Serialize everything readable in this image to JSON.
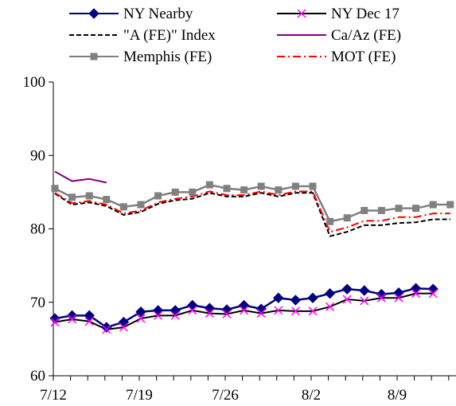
{
  "chart_data": {
    "type": "line",
    "title": "",
    "xlabel": "",
    "ylabel": "",
    "ylim": [
      60,
      100
    ],
    "yticks": [
      "60",
      "70",
      "80",
      "90",
      "100"
    ],
    "xtick_labels": [
      "7/12",
      "7/19",
      "7/26",
      "8/2",
      "8/9"
    ],
    "xtick_positions": [
      0,
      5,
      10,
      15,
      20
    ],
    "x_count": 24,
    "legend": "top, two columns",
    "grid": false,
    "series": [
      {
        "name": "NY Nearby",
        "color": "#000080",
        "marker": "diamond",
        "dash": "solid",
        "x": [
          0,
          1,
          2,
          3,
          4,
          5,
          6,
          7,
          8,
          9,
          10,
          11,
          12,
          13,
          14,
          15,
          16,
          17,
          18,
          19,
          20,
          21,
          22
        ],
        "values": [
          67.8,
          68.2,
          68.2,
          66.6,
          67.3,
          68.7,
          68.9,
          68.9,
          69.6,
          69.2,
          69.0,
          69.6,
          69.1,
          70.6,
          70.3,
          70.6,
          71.2,
          71.8,
          71.6,
          71.1,
          71.3,
          71.9,
          71.8
        ]
      },
      {
        "name": "NY Dec 17",
        "color": "#000000",
        "marker": "none",
        "dash": "solid",
        "x": [
          0,
          1,
          2,
          3,
          4,
          5,
          6,
          7,
          8,
          9,
          10,
          11,
          12,
          13,
          14,
          15,
          16,
          17,
          18,
          19,
          20,
          21,
          22
        ],
        "values": [
          67.3,
          67.7,
          67.4,
          66.3,
          66.6,
          67.8,
          68.2,
          68.2,
          68.9,
          68.5,
          68.4,
          68.9,
          68.5,
          68.9,
          68.8,
          68.8,
          69.4,
          70.4,
          70.2,
          70.6,
          70.6,
          71.2,
          71.2
        ]
      },
      {
        "name": "NY Dec 17 markers",
        "color": "#ff00ff",
        "marker": "x",
        "dash": "none",
        "x": [
          0,
          1,
          2,
          3,
          4,
          5,
          6,
          7,
          8,
          9,
          10,
          11,
          12,
          13,
          14,
          15,
          16,
          17,
          18,
          19,
          20,
          21,
          22
        ],
        "values": [
          67.3,
          67.7,
          67.4,
          66.3,
          66.6,
          67.8,
          68.2,
          68.2,
          68.9,
          68.5,
          68.4,
          68.9,
          68.5,
          68.9,
          68.8,
          68.8,
          69.4,
          70.4,
          70.2,
          70.6,
          70.6,
          71.2,
          71.2
        ]
      },
      {
        "name": "\"A (FE)\" Index",
        "color": "#000000",
        "marker": "none",
        "dash": "dashed",
        "x": [
          0,
          1,
          2,
          3,
          4,
          5,
          6,
          7,
          8,
          9,
          10,
          11,
          12,
          13,
          14,
          15,
          16,
          17,
          18,
          19,
          20,
          21,
          22,
          23
        ],
        "values": [
          84.8,
          83.3,
          83.6,
          83.1,
          81.9,
          82.3,
          83.4,
          83.9,
          84.1,
          84.9,
          84.4,
          84.4,
          84.9,
          84.4,
          84.9,
          84.9,
          79.0,
          79.6,
          80.5,
          80.5,
          80.8,
          80.9,
          81.3,
          81.3
        ]
      },
      {
        "name": "Ca/Az (FE)",
        "color": "#800080",
        "marker": "none",
        "dash": "solid",
        "x": [
          0,
          1,
          2,
          3
        ],
        "values": [
          87.8,
          86.5,
          86.8,
          86.3
        ]
      },
      {
        "name": "Memphis (FE)",
        "color": "#808080",
        "marker": "square",
        "dash": "solid",
        "x": [
          0,
          1,
          2,
          3,
          4,
          5,
          6,
          7,
          8,
          9,
          10,
          11,
          12,
          13,
          14,
          15,
          16,
          17,
          18,
          19,
          20,
          21,
          22,
          23
        ],
        "values": [
          85.5,
          84.3,
          84.5,
          84.0,
          83.0,
          83.3,
          84.5,
          85.0,
          85.0,
          86.0,
          85.5,
          85.3,
          85.8,
          85.3,
          85.8,
          85.8,
          81.0,
          81.5,
          82.5,
          82.5,
          82.8,
          82.8,
          83.3,
          83.3
        ]
      },
      {
        "name": "MOT (FE)",
        "color": "#ff0000",
        "marker": "none",
        "dash": "dashdot",
        "x": [
          0,
          1,
          2,
          3,
          4,
          5,
          6,
          7,
          8,
          9,
          10,
          11,
          12,
          13,
          14,
          15,
          16,
          17,
          18,
          19,
          20,
          21,
          22,
          23
        ],
        "values": [
          84.9,
          83.5,
          83.8,
          83.3,
          82.1,
          82.5,
          83.6,
          84.1,
          84.4,
          85.1,
          84.6,
          84.6,
          85.1,
          84.6,
          85.1,
          85.1,
          79.6,
          80.2,
          81.1,
          81.1,
          81.6,
          81.6,
          82.1,
          82.1
        ]
      }
    ],
    "legend_entries": [
      {
        "label": "NY Nearby",
        "color": "#000080",
        "marker": "diamond",
        "dash": "solid"
      },
      {
        "label": "NY Dec 17",
        "color": "#000000",
        "marker": "x",
        "marker_color": "#ff00ff",
        "dash": "solid"
      },
      {
        "label": "\"A (FE)\" Index",
        "color": "#000000",
        "marker": "none",
        "dash": "dashed"
      },
      {
        "label": "Ca/Az (FE)",
        "color": "#800080",
        "marker": "none",
        "dash": "solid"
      },
      {
        "label": "Memphis (FE)",
        "color": "#808080",
        "marker": "square",
        "dash": "solid"
      },
      {
        "label": "MOT (FE)",
        "color": "#ff0000",
        "marker": "none",
        "dash": "dashdot"
      }
    ]
  }
}
